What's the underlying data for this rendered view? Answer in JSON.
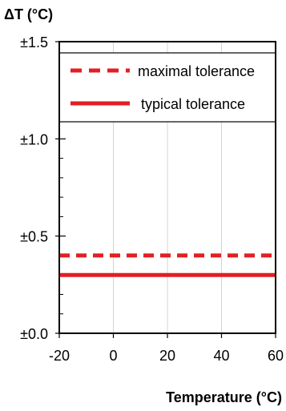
{
  "chart_data": {
    "type": "line",
    "xlabel": "Temperature (°C)",
    "ylabel": "ΔT (°C)",
    "xlim": [
      -20,
      60
    ],
    "ylim": [
      0,
      1.5
    ],
    "xticks": [
      "-20",
      "0",
      "20",
      "40",
      "60"
    ],
    "xtick_values": [
      -20,
      0,
      20,
      40,
      60
    ],
    "yticks": [
      "±0.0",
      "±0.5",
      "±1.0",
      "±1.5"
    ],
    "ytick_values": [
      0,
      0.5,
      1.0,
      1.5
    ],
    "grid": "vertical",
    "legend_position": "top",
    "series": [
      {
        "name": "maximal tolerance",
        "style": "dashed",
        "color": "#e31e24",
        "x": [
          -20,
          60
        ],
        "y": [
          0.4,
          0.4
        ]
      },
      {
        "name": "typical tolerance",
        "style": "solid",
        "color": "#e31e24",
        "x": [
          -20,
          60
        ],
        "y": [
          0.3,
          0.3
        ]
      }
    ]
  }
}
